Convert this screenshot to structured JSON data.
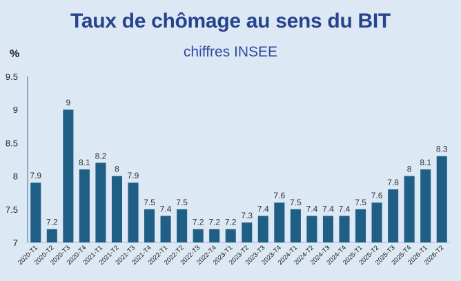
{
  "title": "Taux de chômage au sens du BIT",
  "subtitle": "chiffres INSEE",
  "unit": "%",
  "colors": {
    "bar": "#1f5f86",
    "background": "#dde8f5",
    "title": "#26438e"
  },
  "chart_data": {
    "type": "bar",
    "title": "Taux de chômage au sens du BIT",
    "subtitle": "chiffres INSEE",
    "ylabel": "%",
    "xlabel": "",
    "ylim": [
      7,
      9.5
    ],
    "yticks": [
      "7",
      "7.5",
      "8",
      "8.5",
      "9",
      "9.5"
    ],
    "grid": false,
    "categories": [
      "2020-T1",
      "2020-T2",
      "2020-T3",
      "2020-T4",
      "2021-T1",
      "2021-T2",
      "2021-T3",
      "2021-T4",
      "2022-T1",
      "2022-T2",
      "2022-T3",
      "2022-T4",
      "2023-T1",
      "2023-T2",
      "2023-T3",
      "2023-T4",
      "2024-T1",
      "2024-T2",
      "2024-T3",
      "2024-T4",
      "2025-T1",
      "2025-T2",
      "2025-T3",
      "2025-T4",
      "2026-T1",
      "2026-T2"
    ],
    "values": [
      7.9,
      7.2,
      9,
      8.1,
      8.2,
      8,
      7.9,
      7.5,
      7.4,
      7.5,
      7.2,
      7.2,
      7.2,
      7.3,
      7.4,
      7.6,
      7.5,
      7.4,
      7.4,
      7.4,
      7.5,
      7.6,
      7.8,
      8,
      8.1,
      8.3
    ],
    "labels": [
      "7.9",
      "7.2",
      "9",
      "8.1",
      "8.2",
      "8",
      "7.9",
      "7.5",
      "7.4",
      "7.5",
      "7.2",
      "7.2",
      "7.2",
      "7.3",
      "7.4",
      "7.6",
      "7.5",
      "7.4",
      "7.4",
      "7.4",
      "7.5",
      "7.6",
      "7.8",
      "8",
      "8.1",
      "8.3"
    ]
  }
}
